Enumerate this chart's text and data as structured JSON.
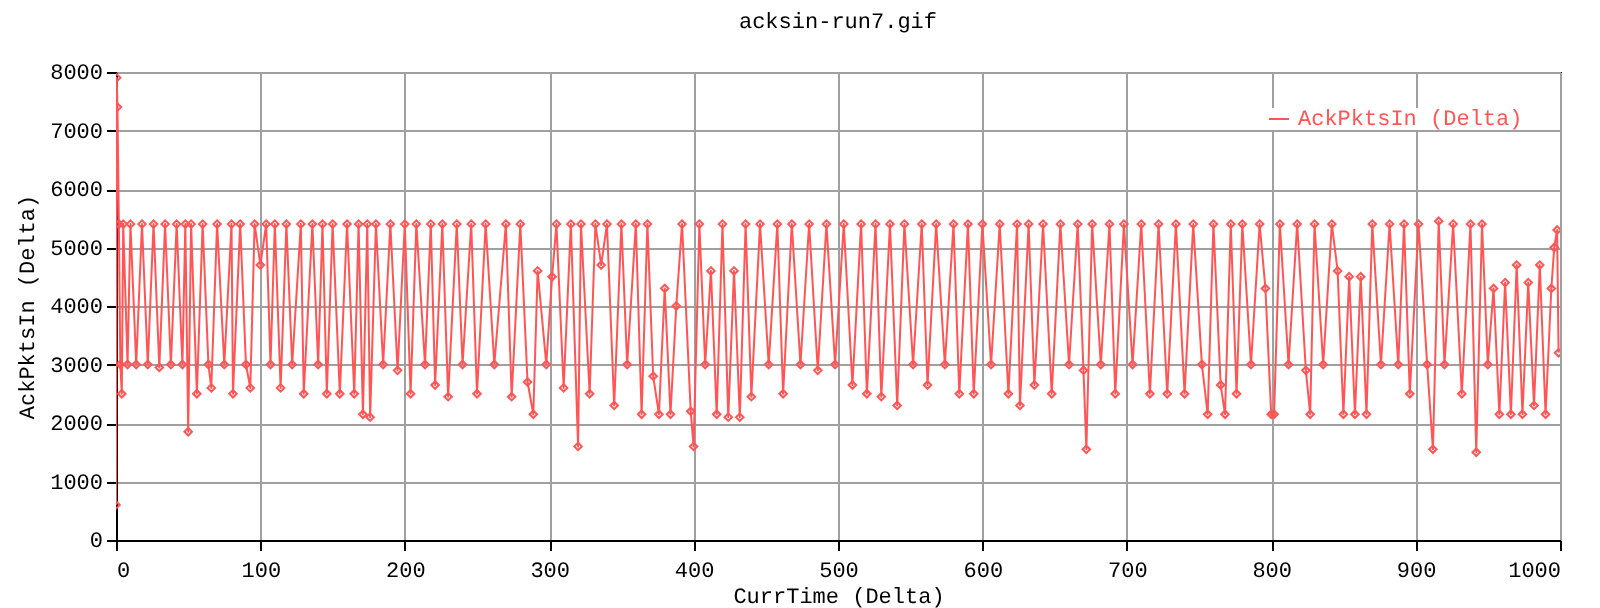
{
  "chart_data": {
    "type": "line",
    "title": "acksin-run7.gif",
    "xlabel": "CurrTime (Delta)",
    "ylabel": "AckPktsIn (Delta)",
    "xlim": [
      0,
      1000
    ],
    "ylim": [
      0,
      8000
    ],
    "xticks": [
      0,
      100,
      200,
      300,
      400,
      500,
      600,
      700,
      800,
      900,
      1000
    ],
    "yticks": [
      0,
      1000,
      2000,
      3000,
      4000,
      5000,
      6000,
      7000,
      8000
    ],
    "grid": true,
    "legend": "top right",
    "marker": "diamond",
    "line_style": "solid",
    "x": [
      0,
      0.5,
      1,
      2,
      3,
      4,
      5,
      8,
      10,
      14,
      18,
      22,
      26,
      30,
      34,
      38,
      42,
      46,
      48,
      50,
      52,
      56,
      60,
      64,
      66,
      70,
      75,
      80,
      81,
      86,
      90,
      93,
      96,
      100,
      104,
      107,
      110,
      114,
      118,
      122,
      128,
      130,
      136,
      140,
      143,
      146,
      150,
      155,
      160,
      165,
      168,
      171,
      174,
      176,
      180,
      185,
      190,
      195,
      200,
      204,
      208,
      214,
      218,
      221,
      226,
      230,
      236,
      240,
      246,
      250,
      256,
      262,
      270,
      274,
      280,
      285,
      289,
      292,
      298,
      302,
      305,
      310,
      315,
      320,
      322,
      328,
      332,
      336,
      340,
      345,
      350,
      354,
      360,
      364,
      368,
      372,
      376,
      380,
      384,
      388,
      392,
      398,
      400,
      404,
      408,
      412,
      416,
      420,
      424,
      428,
      432,
      436,
      440,
      446,
      452,
      458,
      462,
      468,
      474,
      480,
      486,
      492,
      498,
      504,
      510,
      516,
      520,
      526,
      530,
      536,
      541,
      546,
      552,
      558,
      562,
      568,
      574,
      580,
      584,
      590,
      594,
      600,
      606,
      612,
      618,
      624,
      626,
      632,
      636,
      642,
      648,
      654,
      660,
      666,
      670,
      672,
      676,
      682,
      688,
      692,
      698,
      704,
      710,
      716,
      722,
      728,
      734,
      740,
      746,
      752,
      756,
      760,
      765,
      768,
      772,
      776,
      780,
      786,
      792,
      796,
      800,
      802,
      806,
      812,
      818,
      824,
      827,
      830,
      836,
      842,
      846,
      850,
      854,
      858,
      862,
      866,
      870,
      876,
      882,
      888,
      892,
      896,
      902,
      908,
      912,
      916,
      920,
      926,
      932,
      938,
      942,
      946,
      950,
      954,
      958,
      962,
      966,
      970,
      974,
      978,
      982,
      986,
      990,
      994,
      996,
      998,
      999
    ],
    "series": [
      {
        "name": "AckPktsIn (Delta)",
        "color": "#ff5555",
        "values": [
          600,
          7900,
          7400,
          5400,
          3000,
          2500,
          5400,
          3000,
          5400,
          3000,
          5400,
          3000,
          5400,
          2950,
          5400,
          3000,
          5400,
          3000,
          5400,
          1850,
          5400,
          2500,
          5400,
          3000,
          2600,
          5400,
          3000,
          5400,
          2500,
          5400,
          3000,
          2600,
          5400,
          4700,
          5400,
          3000,
          5400,
          2600,
          5400,
          3000,
          5400,
          2500,
          5400,
          3000,
          5400,
          2500,
          5400,
          2500,
          5400,
          2500,
          5400,
          2150,
          5400,
          2100,
          5400,
          3000,
          5400,
          2900,
          5400,
          2500,
          5400,
          3000,
          5400,
          2650,
          5400,
          2450,
          5400,
          3000,
          5400,
          2500,
          5400,
          3000,
          5400,
          2450,
          5400,
          2700,
          2150,
          4600,
          3000,
          4500,
          5400,
          2600,
          5400,
          1600,
          5400,
          2500,
          5400,
          4700,
          5400,
          2300,
          5400,
          3000,
          5400,
          2150,
          5400,
          2800,
          2150,
          4300,
          2150,
          4000,
          5400,
          2200,
          1600,
          5400,
          3000,
          4600,
          2150,
          5400,
          2100,
          4600,
          2100,
          5400,
          2450,
          5400,
          3000,
          5400,
          2500,
          5400,
          3000,
          5400,
          2900,
          5400,
          3000,
          5400,
          2650,
          5400,
          2500,
          5400,
          2450,
          5400,
          2300,
          5400,
          3000,
          5400,
          2650,
          5400,
          3000,
          5400,
          2500,
          5400,
          2500,
          5400,
          3000,
          5400,
          2500,
          5400,
          2300,
          5400,
          2650,
          5400,
          2500,
          5400,
          3000,
          5400,
          2900,
          1550,
          5400,
          3000,
          5400,
          2500,
          5400,
          3000,
          5400,
          2500,
          5400,
          2500,
          5400,
          2500,
          5400,
          3000,
          2150,
          5400,
          2650,
          2150,
          5400,
          2500,
          5400,
          3000,
          5400,
          4300,
          2150,
          2150,
          5400,
          3000,
          5400,
          2900,
          2150,
          5400,
          3000,
          5400,
          4600,
          2150,
          4500,
          2150,
          4500,
          2150,
          5400,
          3000,
          5400,
          3000,
          5400,
          2500,
          5400,
          3000,
          1550,
          5450,
          3000,
          5400,
          2500,
          5400,
          1500,
          5400,
          3000,
          4300,
          2150,
          4400,
          2150,
          4700,
          2150,
          4400,
          2300,
          4700,
          2150,
          4300,
          5000,
          5300,
          3200
        ]
      }
    ]
  }
}
